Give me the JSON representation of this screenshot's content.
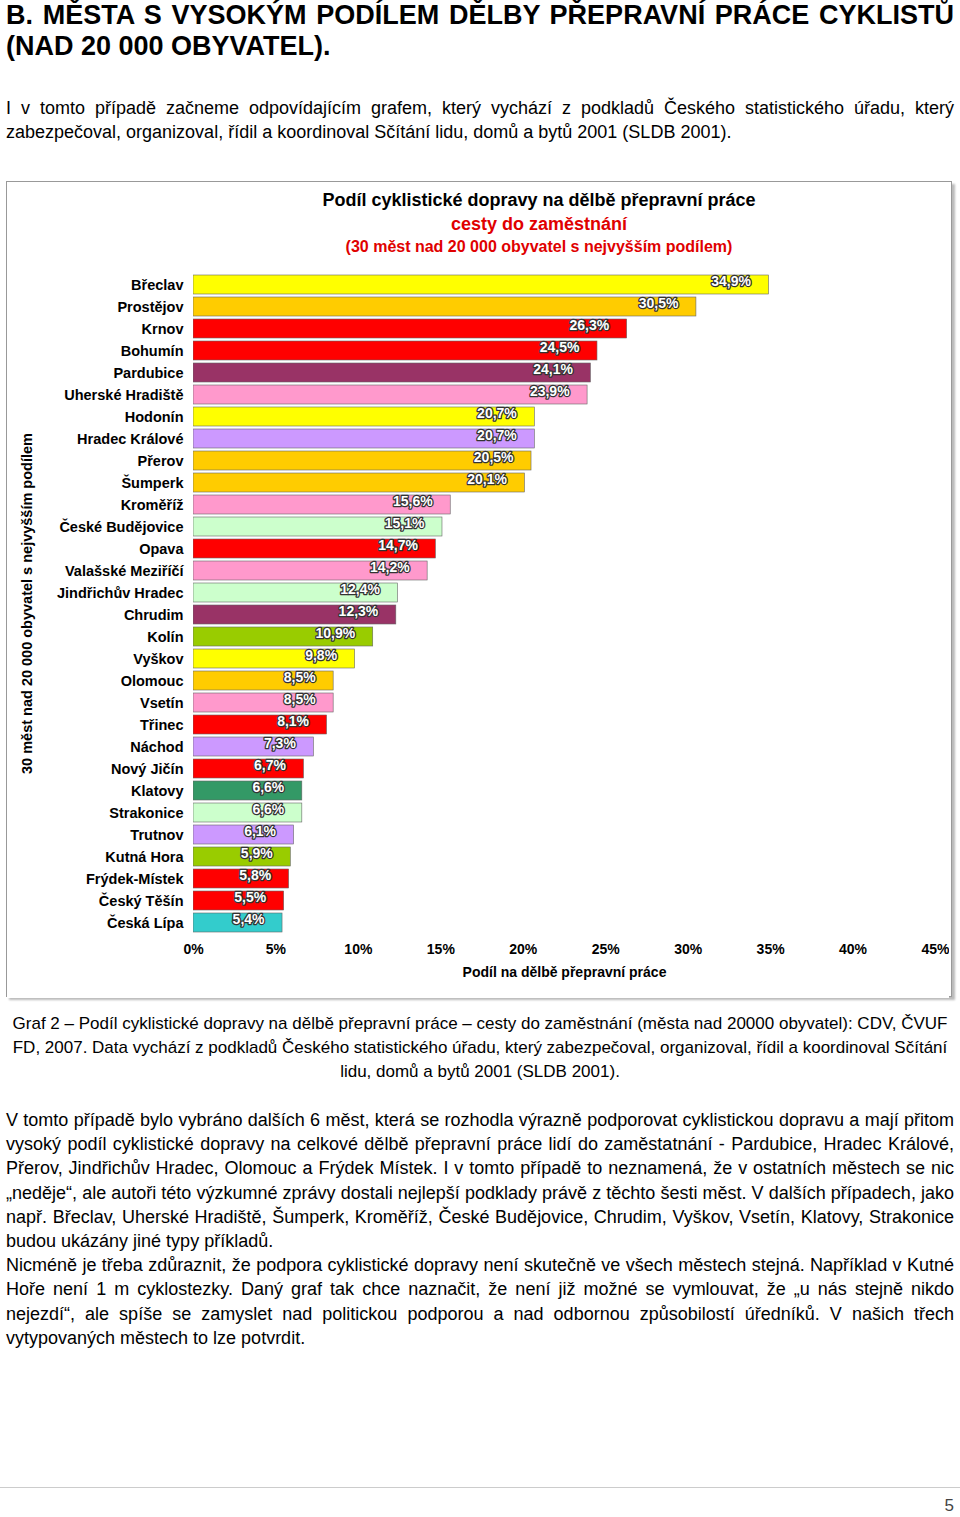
{
  "heading": "B. MĚSTA S VYSOKÝM PODÍLEM DĚLBY PŘEPRAVNÍ PRÁCE CYKLISTŮ (NAD 20 000 OBYVATEL).",
  "intro": "I v tomto případě začneme odpovídajícím grafem, který vychází z podkladů Českého statistického úřadu, který zabezpečoval, organizoval, řídil a koordinoval Sčítání lidu, domů a bytů 2001 (SLDB 2001).",
  "chart_data": {
    "type": "bar",
    "orientation": "horizontal",
    "title": "Podíl cyklistické dopravy na dělbě přepravní práce",
    "subtitle": [
      "cesty do zaměstnání",
      "(30 měst nad 20 000 obyvatel s nejvyšším podílem)"
    ],
    "x_label": "Podíl na dělbě přepravní práce",
    "y_label": "30 měst nad 20 000 obyvatel s nejvyšším podílem",
    "categories": [
      "Břeclav",
      "Prostějov",
      "Krnov",
      "Bohumín",
      "Pardubice",
      "Uherské Hradiště",
      "Hodonín",
      "Hradec Králové",
      "Přerov",
      "Šumperk",
      "Kroměříž",
      "České Budějovice",
      "Opava",
      "Valašské Meziříčí",
      "Jindřichův Hradec",
      "Chrudim",
      "Kolín",
      "Vyškov",
      "Olomouc",
      "Vsetín",
      "Třinec",
      "Náchod",
      "Nový Jičín",
      "Klatovy",
      "Strakonice",
      "Trutnov",
      "Kutná Hora",
      "Frýdek-Místek",
      "Český Těšín",
      "Česká Lípa"
    ],
    "values": [
      34.9,
      30.5,
      26.3,
      24.5,
      24.1,
      23.9,
      20.7,
      20.7,
      20.5,
      20.1,
      15.6,
      15.1,
      14.7,
      14.2,
      12.4,
      12.3,
      10.9,
      9.8,
      8.5,
      8.5,
      8.1,
      7.3,
      6.7,
      6.6,
      6.6,
      6.1,
      5.9,
      5.8,
      5.5,
      5.4
    ],
    "value_labels": [
      "34,9%",
      "30,5%",
      "26,3%",
      "24,5%",
      "24,1%",
      "23,9%",
      "20,7%",
      "20,7%",
      "20,5%",
      "20,1%",
      "15,6%",
      "15,1%",
      "14,7%",
      "14,2%",
      "12,4%",
      "12,3%",
      "10,9%",
      "9,8%",
      "8,5%",
      "8,5%",
      "8,1%",
      "7,3%",
      "6,7%",
      "6,6%",
      "6,6%",
      "6,1%",
      "5,9%",
      "5,8%",
      "5,5%",
      "5,4%"
    ],
    "colors": [
      "#ffff00",
      "#ffcc00",
      "#ff0000",
      "#ff0000",
      "#993366",
      "#ff99cc",
      "#ffff00",
      "#cc99ff",
      "#ffcc00",
      "#ffcc00",
      "#ff99cc",
      "#ccffcc",
      "#ff0000",
      "#ff99cc",
      "#ccffcc",
      "#993366",
      "#99cc00",
      "#ffff00",
      "#ffcc00",
      "#ff99cc",
      "#ff0000",
      "#cc99ff",
      "#ff0000",
      "#339966",
      "#ccffcc",
      "#cc99ff",
      "#99cc00",
      "#ff0000",
      "#ff0000",
      "#33cccc"
    ],
    "xlim": [
      0,
      45
    ],
    "xticks": [
      {
        "value": 0,
        "label": "0%"
      },
      {
        "value": 5,
        "label": "5%"
      },
      {
        "value": 10,
        "label": "10%"
      },
      {
        "value": 15,
        "label": "15%"
      },
      {
        "value": 20,
        "label": "20%"
      },
      {
        "value": 25,
        "label": "25%"
      },
      {
        "value": 30,
        "label": "30%"
      },
      {
        "value": 35,
        "label": "35%"
      },
      {
        "value": 40,
        "label": "40%"
      },
      {
        "value": 45,
        "label": "45%"
      }
    ],
    "grid": false,
    "data_labels": true
  },
  "caption": "Graf 2 – Podíl cyklistické dopravy na dělbě přepravní práce – cesty do zaměstnání (města nad 20000 obyvatel): CDV, ČVUF FD, 2007. Data vychází z podkladů Českého statistického úřadu, který zabezpečoval, organizoval, řídil a koordinoval Sčítání lidu, domů a bytů 2001 (SLDB 2001).",
  "paragraphs": [
    "V tomto případě bylo vybráno dalších 6 měst, která se rozhodla výrazně podporovat cyklistickou dopravu a mají přitom vysoký podíl cyklistické dopravy na celkové dělbě přepravní práce lidí do zaměstatnání - Pardubice, Hradec Králové, Přerov, Jindřichův Hradec, Olomouc a Frýdek Místek. I v tomto případě to neznamená, že v ostatních městech se nic „neděje“, ale autoři této výzkumné zprávy dostali nejlepší podklady právě z těchto šesti měst. V dalších případech, jako např. Břeclav, Uherské Hradiště, Šumperk, Kroměříž, České Budějovice, Chrudim, Vyškov, Vsetín, Klatovy, Strakonice budou ukázány jiné typy příkladů.",
    "Nicméně je třeba zdůraznit, že podpora cyklistické dopravy není skutečně ve všech městech stejná. Například v Kutné Hoře není 1 m cyklostezky. Daný graf tak chce naznačit, že není již možné se vymlouvat, že „u nás stejně nikdo nejezdí“, ale spíše se zamyslet nad politickou podporou a nad odbornou způsobilostí úředníků. V našich třech vytypovaných městech to lze potvrdit."
  ],
  "page_number": "5"
}
